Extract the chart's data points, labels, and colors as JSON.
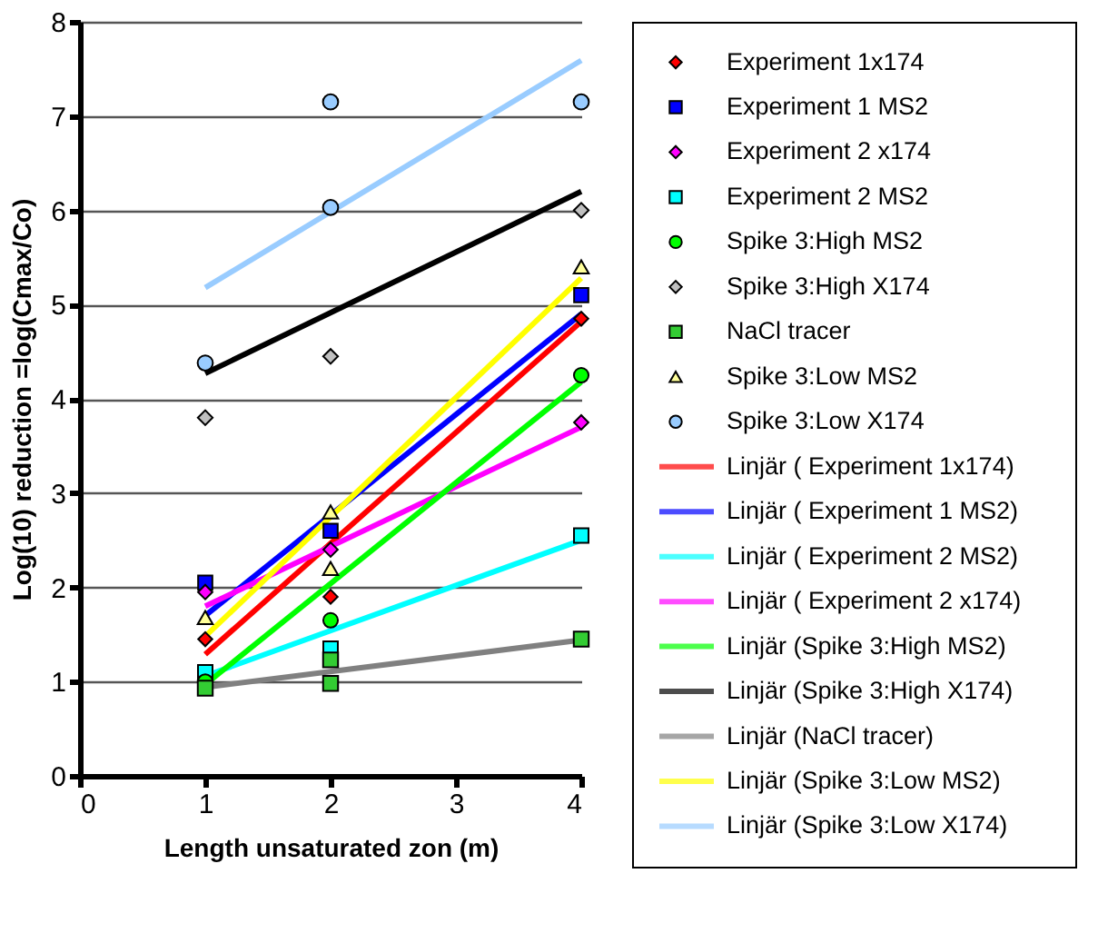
{
  "chart_data": {
    "type": "scatter",
    "xlabel": "Length unsaturated zon (m)",
    "ylabel": "Log(10) reduction  =log(Cmax/Co)",
    "xlim": [
      0,
      4
    ],
    "xticks": [
      0,
      1,
      2,
      3,
      4
    ],
    "ylim": [
      0,
      8
    ],
    "yticks": [
      0,
      1,
      2,
      3,
      4,
      5,
      6,
      7,
      8
    ],
    "grid": "y",
    "legend": "right",
    "series": [
      {
        "name": "Experiment 1x174",
        "type": "scatter",
        "marker": "diamond",
        "color": "#ff0000",
        "x": [
          1,
          2,
          4
        ],
        "values": [
          1.45,
          1.9,
          4.85
        ]
      },
      {
        "name": "Experiment 1 MS2",
        "type": "scatter",
        "marker": "square",
        "color": "#0000ff",
        "x": [
          1,
          2,
          4
        ],
        "values": [
          2.05,
          2.6,
          5.1
        ]
      },
      {
        "name": "Experiment 2 x174",
        "type": "scatter",
        "marker": "diamond",
        "color": "#ff00ff",
        "x": [
          1,
          2,
          4
        ],
        "values": [
          1.95,
          2.4,
          3.75
        ]
      },
      {
        "name": "Experiment 2 MS2",
        "type": "scatter",
        "marker": "square",
        "color": "#00ffff",
        "x": [
          1,
          2,
          4
        ],
        "values": [
          1.1,
          1.35,
          2.55
        ]
      },
      {
        "name": "Spike 3:High MS2",
        "type": "scatter",
        "marker": "circle",
        "color": "#00ff00",
        "x": [
          1,
          2,
          4
        ],
        "values": [
          1.0,
          1.65,
          4.25
        ]
      },
      {
        "name": "Spike 3:High X174",
        "type": "scatter",
        "marker": "diamond",
        "color": "#c0c0c0",
        "x": [
          1,
          2,
          4
        ],
        "values": [
          3.8,
          4.45,
          6.0
        ]
      },
      {
        "name": "NaCl tracer",
        "type": "scatter",
        "marker": "square",
        "color": "#33cc33",
        "x": [
          1,
          2,
          2,
          4
        ],
        "values": [
          0.93,
          1.23,
          0.98,
          1.45
        ]
      },
      {
        "name": "Spike 3:Low MS2",
        "type": "scatter",
        "marker": "triangle",
        "color": "#ffff99",
        "x": [
          1,
          2,
          2,
          4
        ],
        "values": [
          1.68,
          2.8,
          2.2,
          5.4
        ]
      },
      {
        "name": "Spike 3:Low X174",
        "type": "scatter",
        "marker": "circle",
        "color": "#99ccff",
        "x": [
          1,
          2,
          2,
          4
        ],
        "values": [
          4.38,
          6.03,
          7.15,
          7.15
        ]
      },
      {
        "name": "Linjär ( Experiment 1x174)",
        "type": "line",
        "color": "#ff0000",
        "x": [
          1,
          4
        ],
        "values": [
          1.29,
          4.82
        ]
      },
      {
        "name": "Linjär ( Experiment 1 MS2)",
        "type": "line",
        "color": "#0000ff",
        "x": [
          1,
          4
        ],
        "values": [
          1.7,
          4.9
        ]
      },
      {
        "name": "Linjär ( Experiment 2 MS2)",
        "type": "line",
        "color": "#00ffff",
        "x": [
          1,
          4
        ],
        "values": [
          1.06,
          2.5
        ]
      },
      {
        "name": "Linjär ( Experiment 2 x174)",
        "type": "line",
        "color": "#ff00ff",
        "x": [
          1,
          4
        ],
        "values": [
          1.8,
          3.7
        ]
      },
      {
        "name": "Linjär (Spike 3:High MS2)",
        "type": "line",
        "color": "#00ff00",
        "x": [
          1,
          4
        ],
        "values": [
          0.97,
          4.18
        ]
      },
      {
        "name": "Linjär (Spike 3:High X174)",
        "type": "line",
        "color": "#000000",
        "x": [
          1,
          4
        ],
        "values": [
          4.27,
          6.2
        ]
      },
      {
        "name": "Linjär (NaCl tracer)",
        "type": "line",
        "color": "#808080",
        "x": [
          1,
          4
        ],
        "values": [
          0.94,
          1.44
        ]
      },
      {
        "name": "Linjär (Spike 3:Low MS2)",
        "type": "line",
        "color": "#ffff00",
        "x": [
          1,
          4
        ],
        "values": [
          1.48,
          5.28
        ]
      },
      {
        "name": "Linjär (Spike 3:Low X174)",
        "type": "line",
        "color": "#99ccff",
        "x": [
          1,
          4
        ],
        "values": [
          5.18,
          7.59
        ]
      }
    ]
  }
}
